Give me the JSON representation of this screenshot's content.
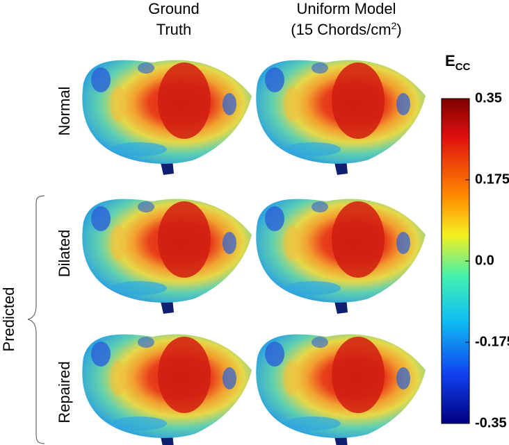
{
  "columns": [
    {
      "line1": "Ground",
      "line2": "Truth"
    },
    {
      "line1": "Uniform Model",
      "line2_pre": "(15 Chords/cm",
      "line2_sup": "2",
      "line2_post": ")"
    }
  ],
  "rows": [
    "Normal",
    "Dilated",
    "Repaired"
  ],
  "group_label": "Predicted",
  "colorbar": {
    "title_main": "E",
    "title_sub": "CC",
    "lim": [
      -0.35,
      0.35
    ],
    "ticks": [
      0.35,
      0.175,
      {
        "value": 0,
        "label": "0.0"
      },
      -0.175,
      -0.35
    ]
  }
}
